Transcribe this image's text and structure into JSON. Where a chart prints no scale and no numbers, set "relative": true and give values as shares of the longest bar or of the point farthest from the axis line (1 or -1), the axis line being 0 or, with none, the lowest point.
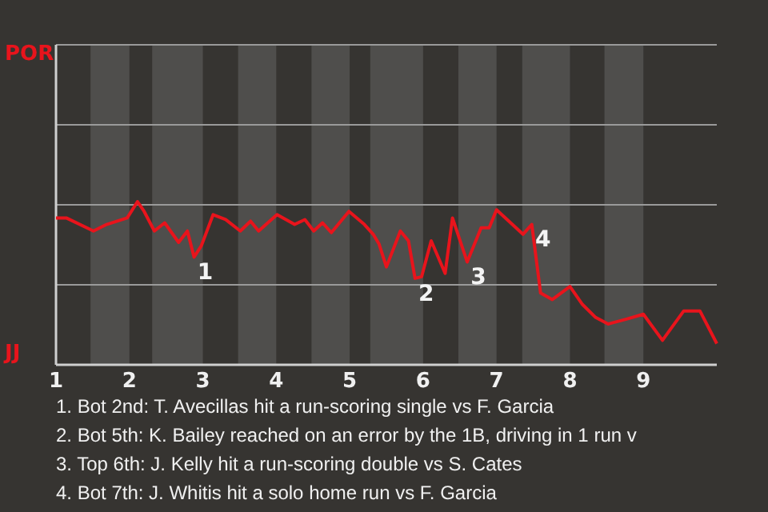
{
  "chart_data": {
    "type": "line",
    "relative": true,
    "x": [
      1,
      1.14,
      1.51,
      1.69,
      1.97,
      2.11,
      2.2,
      2.34,
      2.48,
      2.67,
      2.79,
      2.88,
      2.98,
      3.14,
      3.31,
      3.51,
      3.65,
      3.76,
      4.01,
      4.25,
      4.39,
      4.51,
      4.63,
      4.75,
      4.99,
      5.2,
      5.32,
      5.4,
      5.5,
      5.69,
      5.8,
      5.89,
      5.98,
      6.11,
      6.3,
      6.4,
      6.6,
      6.79,
      6.9,
      7,
      7.36,
      7.48,
      7.6,
      7.76,
      8,
      8.17,
      8.35,
      8.52,
      8.77,
      9,
      9.26,
      9.55,
      9.77,
      10
    ],
    "series": [
      {
        "color": "#e8141c",
        "values": [
          0.9,
          0.9,
          0.82,
          0.86,
          0.9,
          1,
          0.94,
          0.82,
          0.87,
          0.75,
          0.82,
          0.66,
          0.73,
          0.92,
          0.89,
          0.82,
          0.88,
          0.82,
          0.92,
          0.86,
          0.89,
          0.82,
          0.87,
          0.81,
          0.94,
          0.86,
          0.8,
          0.74,
          0.6,
          0.82,
          0.76,
          0.53,
          0.54,
          0.76,
          0.56,
          0.9,
          0.63,
          0.84,
          0.84,
          0.95,
          0.8,
          0.86,
          0.44,
          0.4,
          0.48,
          0.37,
          0.29,
          0.25,
          0.28,
          0.31,
          0.15,
          0.33,
          0.33,
          0.13
        ]
      }
    ],
    "xlim": [
      1,
      10
    ],
    "xticks": [
      1,
      2,
      3,
      4,
      5,
      6,
      7,
      8,
      9
    ],
    "ref_lines": [
      {
        "axis": "y",
        "value": 0.49,
        "color": "#9a9a9a"
      },
      {
        "axis": "y",
        "value": 0.98,
        "color": "#9a9a9a"
      },
      {
        "axis": "y",
        "value": 1.47,
        "color": "#9a9a9a"
      }
    ],
    "marker": "none",
    "bands": [
      {
        "axis": "x",
        "from": 1.47,
        "to": 2,
        "color": "#4f4e4c"
      },
      {
        "axis": "x",
        "from": 2.31,
        "to": 3,
        "color": "#4f4e4c"
      },
      {
        "axis": "x",
        "from": 3.48,
        "to": 4,
        "color": "#4f4e4c"
      },
      {
        "axis": "x",
        "from": 4.48,
        "to": 5,
        "color": "#4f4e4c"
      },
      {
        "axis": "x",
        "from": 5.28,
        "to": 6,
        "color": "#4f4e4c"
      },
      {
        "axis": "x",
        "from": 6.48,
        "to": 7,
        "color": "#4f4e4c"
      },
      {
        "axis": "x",
        "from": 7.35,
        "to": 8,
        "color": "#4f4e4c"
      },
      {
        "axis": "x",
        "from": 8.47,
        "to": 9,
        "color": "#4f4e4c"
      }
    ],
    "annotations": [
      "POR",
      "JJ",
      {
        "text": "1",
        "x": 2.88,
        "y": 0.66
      },
      {
        "text": "2",
        "x": 5.89,
        "y": 0.53
      },
      {
        "text": "3",
        "x": 6.6,
        "y": 0.63
      },
      {
        "text": "4",
        "x": 7.48,
        "y": 0.86
      },
      "1. Bot 2nd: T. Avecillas hit a run-scoring single vs F. Garcia",
      "2. Bot 5th: K. Bailey reached on an error by the 1B, driving in 1 run v",
      "3. Top 6th: J. Kelly hit a run-scoring double vs S. Cates",
      "4. Bot 7th: J. Whitis hit a solo home run vs F. Garcia"
    ]
  }
}
